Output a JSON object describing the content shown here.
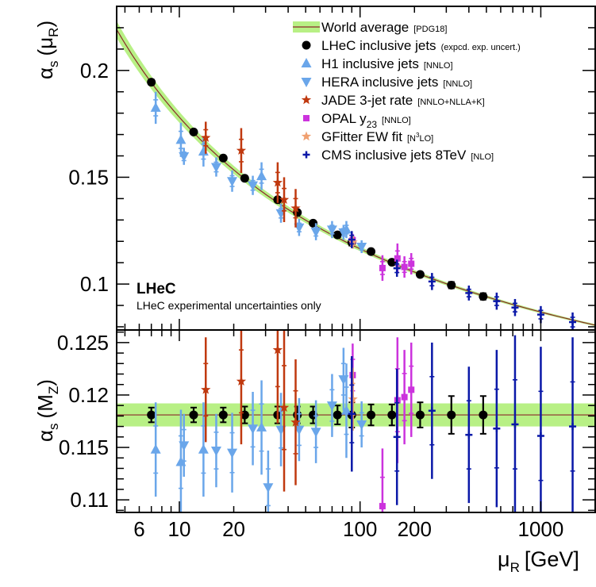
{
  "colors": {
    "world_average_band": "#b8f085",
    "world_average_line": "#8a2a2a",
    "lhec": "#000000",
    "h1": "#6aa6ea",
    "hera": "#6aa6ea",
    "jade": "#c0390f",
    "opal": "#cc33dd",
    "gfitter": "#f0a070",
    "cms": "#0a18a8"
  },
  "labels": {
    "brand": "LHeC",
    "brand_note": "LHeC experimental uncertainties only",
    "top_ylabel_main": "α",
    "top_ylabel_sub": "s",
    "top_ylabel_arg": "(μ",
    "top_ylabel_argsub": "R",
    "top_ylabel_close": ")",
    "bottom_ylabel_main": "α",
    "bottom_ylabel_sub": "s",
    "bottom_ylabel_arg": "(M",
    "bottom_ylabel_argsub": "Z",
    "bottom_ylabel_close": ")",
    "xlabel_main": "μ",
    "xlabel_sub": "R",
    "xlabel_unit": "[GeV]"
  },
  "legend": [
    {
      "key": "world",
      "marker": "band",
      "label": "World average",
      "note": "[PDG18]"
    },
    {
      "key": "lhec",
      "marker": "circle",
      "label": "LHeC inclusive jets",
      "note": "(expcd. exp. uncert.)"
    },
    {
      "key": "h1",
      "marker": "triangle-up",
      "label": "H1 inclusive jets",
      "note": "[NNLO]"
    },
    {
      "key": "hera",
      "marker": "triangle-down",
      "label": "HERA inclusive jets",
      "note": "[NNLO]"
    },
    {
      "key": "jade",
      "marker": "star",
      "label": "JADE 3-jet rate",
      "note": "[NNLO+NLLA+K]"
    },
    {
      "key": "opal",
      "marker": "square",
      "label": "OPAL y",
      "label_sub": "23",
      "note": "[NNLO]"
    },
    {
      "key": "gfitter",
      "marker": "star",
      "label": "GFitter EW fit",
      "note_pre": "[N",
      "note_sup": "3",
      "note_post": "LO]"
    },
    {
      "key": "cms",
      "marker": "cross",
      "label": "CMS inclusive jets 8TeV",
      "note": "[NLO]"
    }
  ],
  "chart_data": [
    {
      "type": "scatter",
      "panel": "top",
      "xlabel": "μR [GeV]",
      "ylabel": "αs (μR)",
      "x_scale": "log",
      "xlim": [
        4.5,
        2000
      ],
      "ylim": [
        0.0785,
        0.23
      ],
      "x_ticks": [
        6,
        10,
        20,
        100,
        200,
        1000
      ],
      "x_tick_labels": [
        "6",
        "10",
        "20",
        "100",
        "200",
        "1000"
      ],
      "y_ticks": [
        0.1,
        0.15,
        0.2
      ],
      "y_tick_labels": [
        "0.1",
        "0.15",
        "0.2"
      ],
      "world_average_mz": 0.1181,
      "world_average_unc": 0.0011,
      "series": [
        {
          "name": "LHeC inclusive jets",
          "key": "lhec",
          "marker": "circle",
          "points": [
            [
              7,
              0.1945,
              0.0012
            ],
            [
              12,
              0.1712,
              0.001
            ],
            [
              17.5,
              0.159,
              0.001
            ],
            [
              23,
              0.1495,
              0.001
            ],
            [
              35,
              0.1395,
              0.001
            ],
            [
              45,
              0.1335,
              0.001
            ],
            [
              55,
              0.1285,
              0.001
            ],
            [
              75,
              0.123,
              0.001
            ],
            [
              90,
              0.1195,
              0.0015
            ],
            [
              115,
              0.1152,
              0.001
            ],
            [
              150,
              0.1102,
              0.001
            ],
            [
              215,
              0.1045,
              0.001
            ],
            [
              320,
              0.0995,
              0.0015
            ],
            [
              480,
              0.0942,
              0.0015
            ]
          ]
        },
        {
          "name": "H1 inclusive jets",
          "key": "h1",
          "marker": "triangle-up",
          "points": [
            [
              7.4,
              0.1825,
              0.0075
            ],
            [
              10.2,
              0.1675,
              0.008
            ],
            [
              13.6,
              0.162,
              0.007
            ],
            [
              28.5,
              0.1505,
              0.0065
            ],
            [
              84,
              0.1255,
              0.004
            ]
          ]
        },
        {
          "name": "HERA inclusive jets",
          "key": "hera",
          "marker": "triangle-down",
          "points": [
            [
              10.6,
              0.1598,
              0.004
            ],
            [
              16,
              0.1548,
              0.0045
            ],
            [
              19.6,
              0.1482,
              0.005
            ],
            [
              25.5,
              0.1462,
              0.0045
            ],
            [
              36.5,
              0.1332,
              0.0045
            ],
            [
              46,
              0.1265,
              0.004
            ],
            [
              57,
              0.1245,
              0.004
            ],
            [
              70,
              0.1255,
              0.004
            ],
            [
              81,
              0.1242,
              0.0035
            ],
            [
              102,
              0.1175,
              0.003
            ]
          ]
        },
        {
          "name": "JADE 3-jet rate",
          "key": "jade",
          "marker": "star",
          "points": [
            [
              14,
              0.1685,
              0.0075
            ],
            [
              22,
              0.1625,
              0.0105
            ],
            [
              35,
              0.1475,
              0.0095
            ],
            [
              38,
              0.1395,
              0.0105
            ],
            [
              44,
              0.1355,
              0.009
            ]
          ]
        },
        {
          "name": "OPAL y23",
          "key": "opal",
          "marker": "square",
          "points": [
            [
              91,
              0.1205,
              0.003
            ],
            [
              133,
              0.1075,
              0.006
            ],
            [
              161,
              0.112,
              0.007
            ],
            [
              176,
              0.108,
              0.005
            ],
            [
              192,
              0.1095,
              0.005
            ]
          ]
        },
        {
          "name": "GFitter EW fit",
          "key": "gfitter",
          "marker": "star",
          "points": [
            [
              91.2,
              0.1196,
              0.003
            ]
          ]
        },
        {
          "name": "CMS inclusive jets 8TeV",
          "key": "cms",
          "marker": "cross",
          "points": [
            [
              90,
              0.1208,
              0.004
            ],
            [
              160,
              0.1074,
              0.004
            ],
            [
              250,
              0.1012,
              0.004
            ],
            [
              400,
              0.0958,
              0.0035
            ],
            [
              570,
              0.092,
              0.004
            ],
            [
              720,
              0.089,
              0.004
            ],
            [
              1000,
              0.0857,
              0.004
            ],
            [
              1500,
              0.0822,
              0.0045
            ]
          ]
        }
      ]
    },
    {
      "type": "scatter",
      "panel": "bottom",
      "xlabel": "μR [GeV]",
      "ylabel": "αs (MZ)",
      "x_scale": "log",
      "xlim": [
        4.5,
        2000
      ],
      "ylim": [
        0.1088,
        0.1262
      ],
      "y_ticks": [
        0.11,
        0.115,
        0.12,
        0.125
      ],
      "y_tick_labels": [
        "0.11",
        "0.115",
        "0.12",
        "0.125"
      ],
      "world_average_mz": 0.1181,
      "world_average_unc": 0.0011,
      "series": [
        {
          "name": "LHeC inclusive jets",
          "key": "lhec",
          "marker": "circle",
          "points": [
            [
              7,
              0.1181,
              0.0007
            ],
            [
              12,
              0.1181,
              0.0007
            ],
            [
              17.5,
              0.1181,
              0.0007
            ],
            [
              23,
              0.1181,
              0.0008
            ],
            [
              35,
              0.1181,
              0.0008
            ],
            [
              45,
              0.1181,
              0.0008
            ],
            [
              55,
              0.1181,
              0.0008
            ],
            [
              75,
              0.1181,
              0.0009
            ],
            [
              90,
              0.1181,
              0.0012
            ],
            [
              115,
              0.1181,
              0.001
            ],
            [
              150,
              0.1181,
              0.001
            ],
            [
              215,
              0.1181,
              0.0012
            ],
            [
              320,
              0.1181,
              0.0018
            ],
            [
              480,
              0.1181,
              0.0018
            ]
          ]
        },
        {
          "name": "H1 inclusive jets",
          "key": "h1",
          "marker": "triangle-up",
          "points": [
            [
              7.4,
              0.1148,
              0.0045
            ],
            [
              10.2,
              0.1136,
              0.005
            ],
            [
              13.6,
              0.1148,
              0.0045
            ],
            [
              28.5,
              0.1169,
              0.0045
            ],
            [
              84,
              0.1185,
              0.0045
            ]
          ]
        },
        {
          "name": "HERA inclusive jets",
          "key": "hera",
          "marker": "triangle-down",
          "points": [
            [
              10.6,
              0.1152,
              0.003
            ],
            [
              16,
              0.1147,
              0.0035
            ],
            [
              19.6,
              0.1145,
              0.0038
            ],
            [
              25.5,
              0.1168,
              0.0035
            ],
            [
              31,
              0.1112,
              0.0035
            ],
            [
              36.5,
              0.1167,
              0.0035
            ],
            [
              46,
              0.1167,
              0.003
            ],
            [
              57,
              0.1165,
              0.003
            ],
            [
              70,
              0.119,
              0.003
            ],
            [
              81,
              0.1215,
              0.003
            ],
            [
              102,
              0.1172,
              0.0022
            ]
          ]
        },
        {
          "name": "JADE 3-jet rate",
          "key": "jade",
          "marker": "star",
          "points": [
            [
              14,
              0.1205,
              0.005
            ],
            [
              22,
              0.1213,
              0.006
            ],
            [
              35,
              0.1243,
              0.007
            ],
            [
              38,
              0.1188,
              0.008
            ],
            [
              44,
              0.1174,
              0.006
            ]
          ]
        },
        {
          "name": "OPAL y23",
          "key": "opal",
          "marker": "square",
          "points": [
            [
              91,
              0.1219,
              0.003
            ],
            [
              133,
              0.1094,
              0.0055
            ],
            [
              161,
              0.1195,
              0.006
            ],
            [
              176,
              0.1198,
              0.0045
            ],
            [
              192,
              0.1205,
              0.0045
            ]
          ]
        },
        {
          "name": "GFitter EW fit",
          "key": "gfitter",
          "marker": "star",
          "points": [
            [
              91.2,
              0.1196,
              0.003
            ]
          ]
        },
        {
          "name": "CMS inclusive jets 8TeV",
          "key": "cms",
          "marker": "cross",
          "points": [
            [
              90,
              0.1182,
              0.0055
            ],
            [
              160,
              0.116,
              0.0065
            ],
            [
              250,
              0.1185,
              0.0065
            ],
            [
              400,
              0.1162,
              0.0065
            ],
            [
              570,
              0.1168,
              0.0075
            ],
            [
              720,
              0.1172,
              0.0085
            ],
            [
              1000,
              0.1161,
              0.0085
            ],
            [
              1500,
              0.117,
              0.0085
            ]
          ]
        }
      ]
    }
  ]
}
